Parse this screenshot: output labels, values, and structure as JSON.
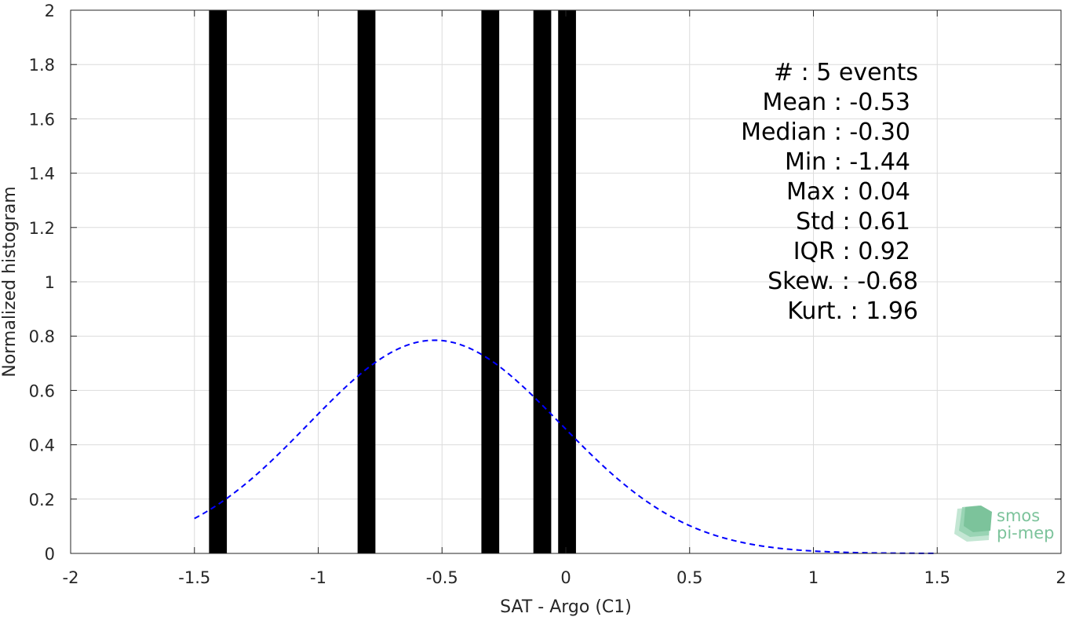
{
  "chart_data": {
    "type": "bar",
    "xlabel": "SAT - Argo (C1)",
    "ylabel": "Normalized histogram",
    "xlim": [
      -2,
      2
    ],
    "ylim": [
      0,
      2
    ],
    "x_ticks": [
      -2,
      -1.5,
      -1,
      -0.5,
      0,
      0.5,
      1,
      1.5,
      2
    ],
    "x_tick_labels": [
      "-2",
      "-1.5",
      "-1",
      "-0.5",
      "0",
      "0.5",
      "1",
      "1.5",
      "2"
    ],
    "y_ticks": [
      0,
      0.2,
      0.4,
      0.6,
      0.8,
      1,
      1.2,
      1.4,
      1.6,
      1.8,
      2
    ],
    "y_tick_labels": [
      "0",
      "0.2",
      "0.4",
      "0.6",
      "0.8",
      "1",
      "1.2",
      "1.4",
      "1.6",
      "1.8",
      "2"
    ],
    "grid": true,
    "bars": [
      {
        "x": -1.405,
        "width": 0.072,
        "value": 2
      },
      {
        "x": -0.805,
        "width": 0.072,
        "value": 2
      },
      {
        "x": -0.305,
        "width": 0.072,
        "value": 2
      },
      {
        "x": -0.095,
        "width": 0.072,
        "value": 2
      },
      {
        "x": 0.005,
        "width": 0.072,
        "value": 2
      }
    ],
    "fit_curve": {
      "style": "dashed",
      "color": "#0000ff",
      "mean": -0.53,
      "std": 0.51,
      "peak": 0.785,
      "x_range": [
        -1.5,
        1.5
      ]
    },
    "bar_color": "#000000",
    "stats": [
      "#  : 5 events",
      "Mean : -0.53",
      "Median : -0.30",
      "Min : -1.44",
      "Max : 0.04",
      "Std : 0.61",
      "IQR : 0.92",
      "Skew. : -0.68",
      "Kurt. : 1.96"
    ]
  },
  "logo": {
    "line1": "smos",
    "line2": "pi-mep",
    "color": "#7cc39b"
  }
}
